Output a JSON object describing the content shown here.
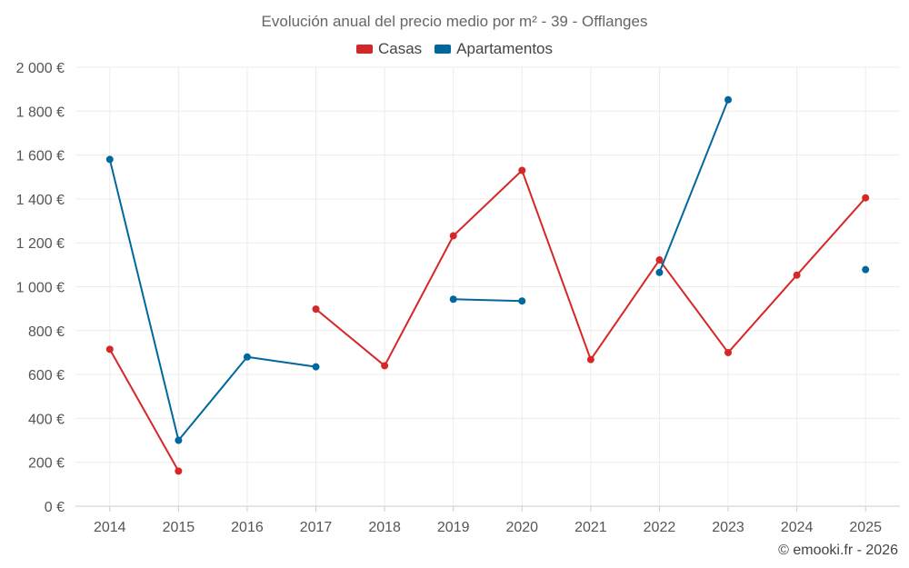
{
  "chart_data": {
    "type": "line",
    "title": "Evolución anual del precio medio por m² - 39 - Offlanges",
    "categories": [
      "2014",
      "2015",
      "2016",
      "2017",
      "2018",
      "2019",
      "2020",
      "2021",
      "2022",
      "2023",
      "2024",
      "2025"
    ],
    "ylim": [
      0,
      2000
    ],
    "yticks": [
      0,
      200,
      400,
      600,
      800,
      1000,
      1200,
      1400,
      1600,
      1800,
      2000
    ],
    "ytick_labels": [
      "0 €",
      "200 €",
      "400 €",
      "600 €",
      "800 €",
      "1 000 €",
      "1 200 €",
      "1 400 €",
      "1 600 €",
      "1 800 €",
      "2 000 €"
    ],
    "grid": true,
    "legend_position": "top-center",
    "series": [
      {
        "name": "Casas",
        "color": "#d62728",
        "values": [
          715,
          160,
          null,
          898,
          640,
          1232,
          1530,
          668,
          1122,
          700,
          1053,
          1405
        ]
      },
      {
        "name": "Apartamentos",
        "color": "#00689f",
        "values": [
          1580,
          300,
          680,
          635,
          null,
          943,
          935,
          null,
          1065,
          1852,
          null,
          1078
        ]
      }
    ]
  },
  "credit": "© emooki.fr - 2026"
}
